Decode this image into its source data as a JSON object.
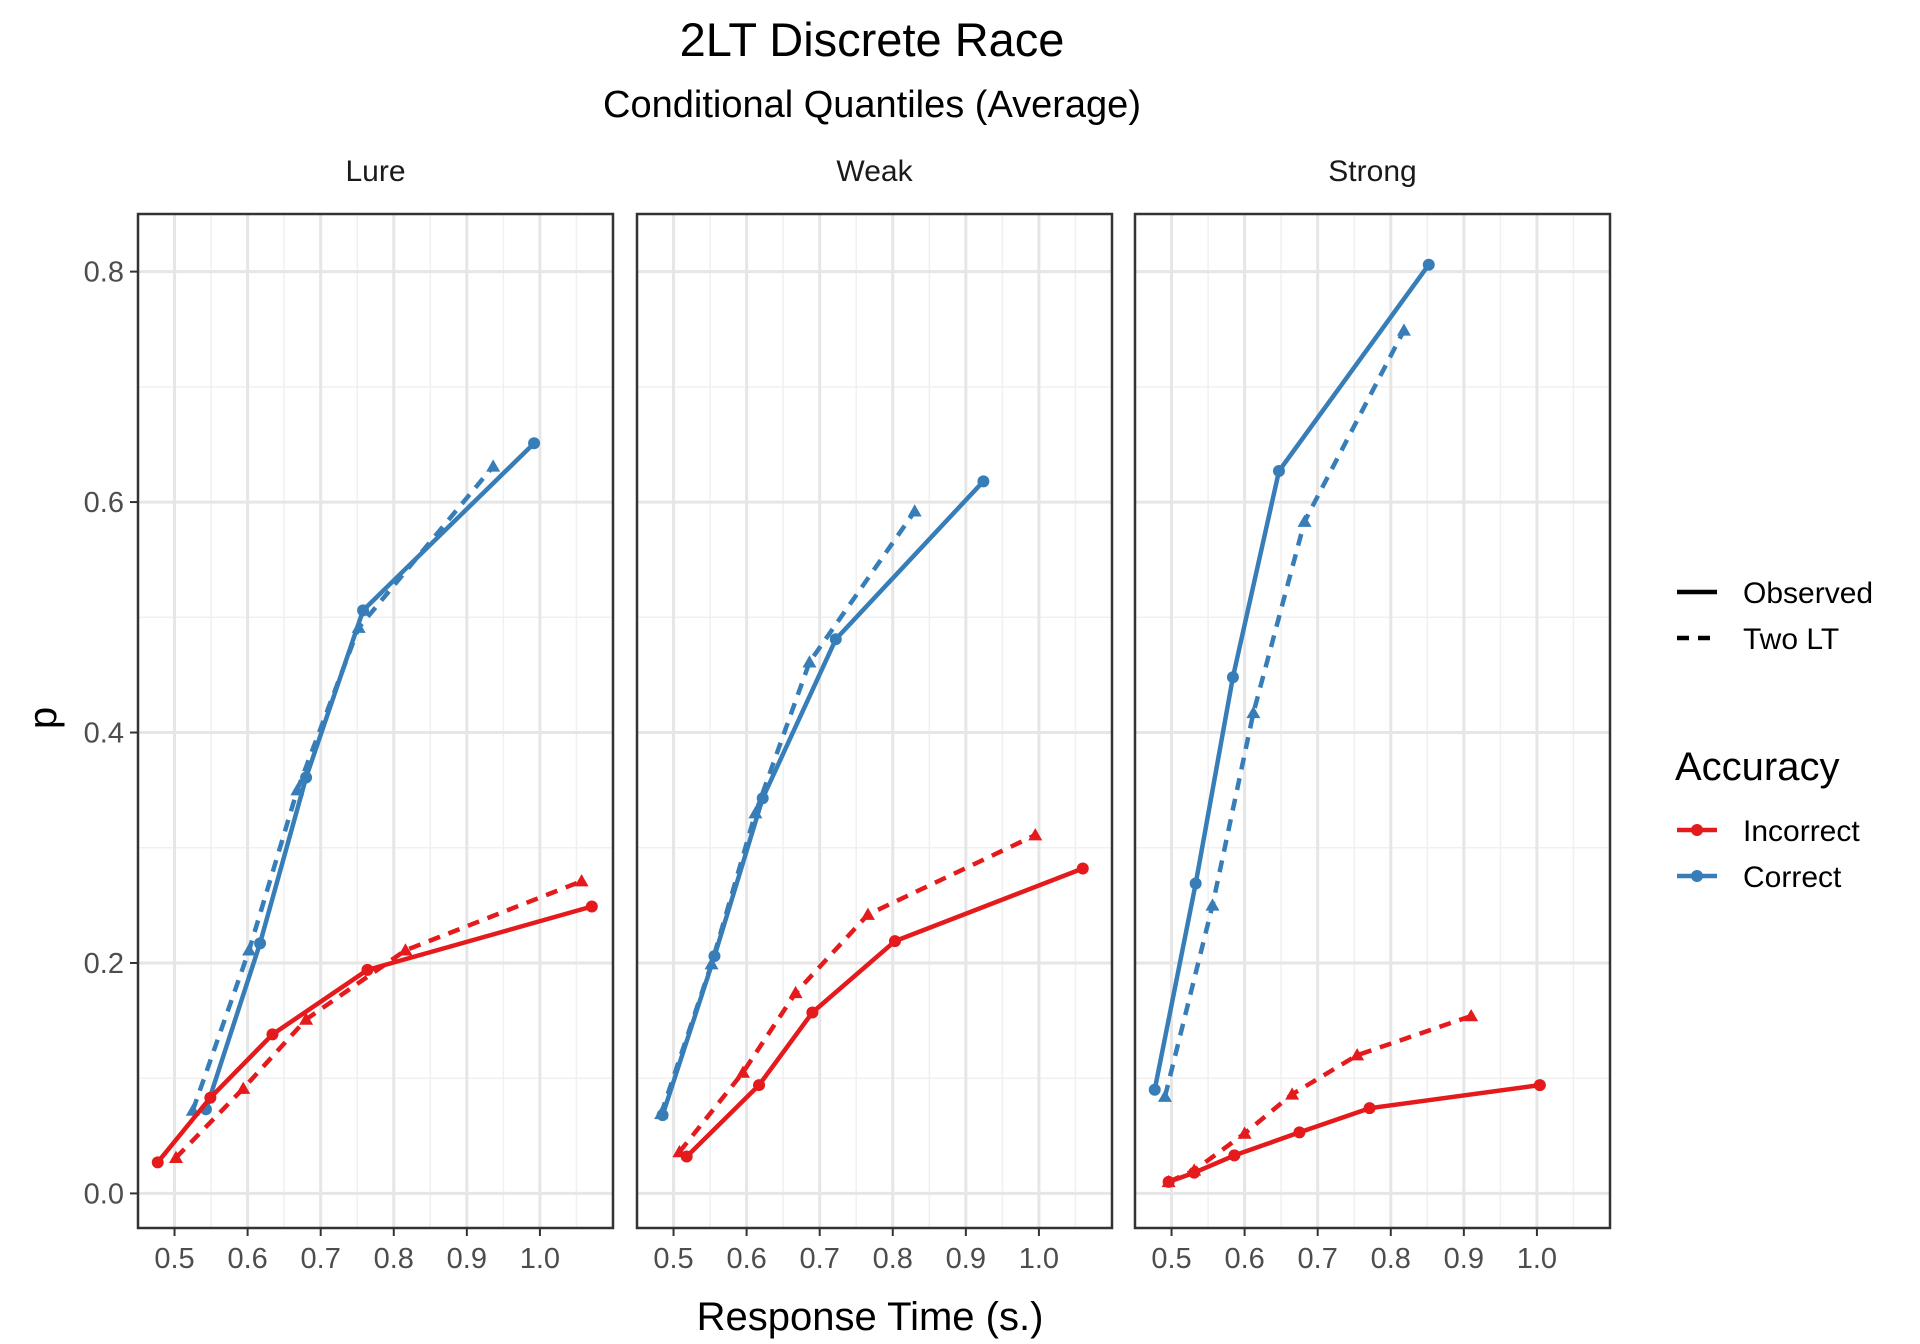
{
  "chart_data": {
    "type": "line",
    "title": "2LT Discrete Race",
    "subtitle": "Conditional Quantiles (Average)",
    "xlabel": "Response Time (s.)",
    "ylabel": "p",
    "xlim": [
      0.45,
      1.1
    ],
    "ylim": [
      -0.03,
      0.85
    ],
    "xticks": [
      "0.5",
      "0.6",
      "0.7",
      "0.8",
      "0.9",
      "1.0"
    ],
    "yticks": [
      "0.0",
      "0.2",
      "0.4",
      "0.6",
      "0.8"
    ],
    "grid": true,
    "legend_position": "right",
    "legend": {
      "linetype_entries": [
        "Observed",
        "Two LT"
      ],
      "color_title": "Accuracy",
      "color_entries": [
        {
          "label": "Incorrect",
          "color": "#E41A1C"
        },
        {
          "label": "Correct",
          "color": "#377EB8"
        }
      ]
    },
    "panels": [
      {
        "label": "Lure",
        "series": [
          {
            "accuracy": "Correct",
            "type": "Observed",
            "x": [
              0.543,
              0.617,
              0.68,
              0.758,
              0.992
            ],
            "y": [
              0.073,
              0.217,
              0.361,
              0.506,
              0.651
            ]
          },
          {
            "accuracy": "Correct",
            "type": "Two LT",
            "x": [
              0.525,
              0.602,
              0.668,
              0.752,
              0.936
            ],
            "y": [
              0.072,
              0.211,
              0.35,
              0.491,
              0.631
            ]
          },
          {
            "accuracy": "Incorrect",
            "type": "Observed",
            "x": [
              0.477,
              0.549,
              0.634,
              0.764,
              1.071
            ],
            "y": [
              0.027,
              0.083,
              0.138,
              0.194,
              0.249
            ]
          },
          {
            "accuracy": "Incorrect",
            "type": "Two LT",
            "x": [
              0.502,
              0.594,
              0.68,
              0.816,
              1.057
            ],
            "y": [
              0.031,
              0.091,
              0.151,
              0.211,
              0.271
            ]
          }
        ]
      },
      {
        "label": "Weak",
        "series": [
          {
            "accuracy": "Correct",
            "type": "Observed",
            "x": [
              0.485,
              0.556,
              0.622,
              0.722,
              0.924
            ],
            "y": [
              0.068,
              0.206,
              0.343,
              0.481,
              0.618
            ]
          },
          {
            "accuracy": "Correct",
            "type": "Two LT",
            "x": [
              0.483,
              0.552,
              0.612,
              0.686,
              0.83
            ],
            "y": [
              0.069,
              0.199,
              0.33,
              0.461,
              0.592
            ]
          },
          {
            "accuracy": "Incorrect",
            "type": "Observed",
            "x": [
              0.518,
              0.617,
              0.69,
              0.803,
              1.06
            ],
            "y": [
              0.032,
              0.094,
              0.157,
              0.219,
              0.282
            ]
          },
          {
            "accuracy": "Incorrect",
            "type": "Two LT",
            "x": [
              0.508,
              0.595,
              0.667,
              0.766,
              0.995
            ],
            "y": [
              0.036,
              0.105,
              0.174,
              0.242,
              0.311
            ]
          }
        ]
      },
      {
        "label": "Strong",
        "series": [
          {
            "accuracy": "Correct",
            "type": "Observed",
            "x": [
              0.477,
              0.533,
              0.584,
              0.647,
              0.852
            ],
            "y": [
              0.09,
              0.269,
              0.448,
              0.627,
              0.806
            ]
          },
          {
            "accuracy": "Correct",
            "type": "Two LT",
            "x": [
              0.491,
              0.556,
              0.612,
              0.682,
              0.818
            ],
            "y": [
              0.084,
              0.25,
              0.417,
              0.583,
              0.749
            ]
          },
          {
            "accuracy": "Incorrect",
            "type": "Observed",
            "x": [
              0.496,
              0.531,
              0.586,
              0.675,
              0.771,
              1.004
            ],
            "y": [
              0.01,
              0.018,
              0.033,
              0.053,
              0.074,
              0.094
            ]
          },
          {
            "accuracy": "Incorrect",
            "type": "Two LT",
            "x": [
              0.496,
              0.531,
              0.6,
              0.665,
              0.754,
              0.91
            ],
            "y": [
              0.01,
              0.02,
              0.052,
              0.086,
              0.12,
              0.154
            ]
          }
        ]
      }
    ]
  }
}
